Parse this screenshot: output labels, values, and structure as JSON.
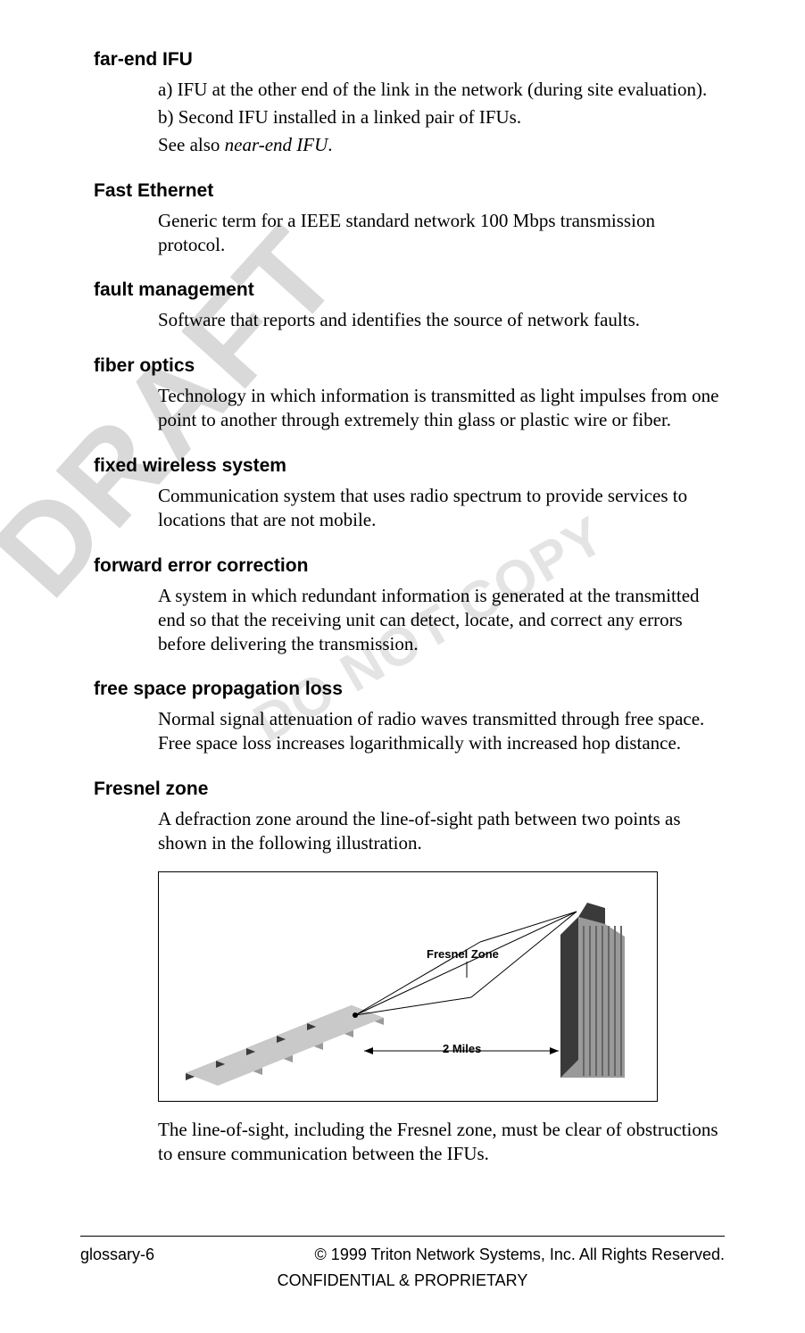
{
  "watermarks": {
    "draft": "DRAFT",
    "donotcopy": "DO NOT COPY"
  },
  "entries": [
    {
      "term": "far-end IFU",
      "lines": [
        "a) IFU at the other end of the link in the network (during site evaluation).",
        "b) Second IFU installed in a linked pair of IFUs."
      ],
      "seealso_prefix": "See also ",
      "seealso_italic": "near-end IFU",
      "seealso_suffix": "."
    },
    {
      "term": "Fast Ethernet",
      "lines": [
        "Generic term for a IEEE standard network 100 Mbps transmission protocol."
      ]
    },
    {
      "term": "fault management",
      "lines": [
        "Software that reports and identifies the source of network faults."
      ]
    },
    {
      "term": "fiber optics",
      "lines": [
        "Technology in which information is transmitted as light impulses from one point to another through extremely thin glass or plastic wire or fiber."
      ]
    },
    {
      "term": "fixed wireless system",
      "lines": [
        "Communication system that uses radio spectrum to provide services to locations that are not mobile."
      ]
    },
    {
      "term": "forward error correction",
      "lines": [
        "A system in which redundant information is generated at the transmitted end so that the receiving unit can detect, locate, and correct any errors before delivering the transmission."
      ]
    },
    {
      "term": "free space propagation loss",
      "lines": [
        "Normal signal attenuation of radio waves transmitted through free space. Free space loss increases logarithmically with increased hop distance."
      ]
    },
    {
      "term": "Fresnel zone",
      "lines": [
        "A defraction zone around the line-of-sight path between two points as shown in the following illustration."
      ],
      "has_figure": true,
      "post_figure": "The line-of-sight, including the Fresnel zone, must be clear of obstructions to ensure communication between the IFUs."
    }
  ],
  "figure": {
    "fresnel_label": "Fresnel Zone",
    "distance_label": "2 Miles",
    "border_color": "#000000",
    "building_fill": "#9a9a9a",
    "building_dark": "#3a3a3a",
    "line_color": "#000000"
  },
  "footer": {
    "page_label": "glossary-6",
    "copyright": "© 1999 Triton Network Systems, Inc. All Rights Reserved.",
    "confidential": "CONFIDENTIAL & PROPRIETARY"
  }
}
